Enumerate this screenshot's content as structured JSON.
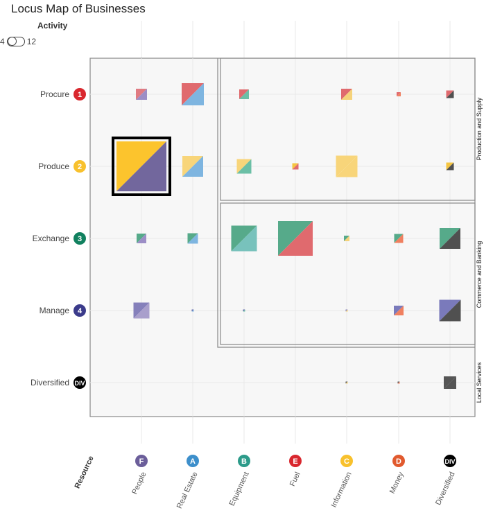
{
  "title": "Locus Map of Businesses",
  "activity_toggle": {
    "label": "Activity",
    "min_label": "4",
    "max_label": "12",
    "state": "off"
  },
  "colors": {
    "background_panel": "#f7f7f7",
    "grid": "#e8e8e8",
    "border": "#888888",
    "highlight_border": "#000000"
  },
  "chart_data": {
    "type": "locus-map",
    "title": "Locus Map of Businesses",
    "y_axis": {
      "rows": [
        {
          "label": "Procure",
          "badge": "1",
          "color": "#d9272e"
        },
        {
          "label": "Produce",
          "badge": "2",
          "color": "#f8c12d"
        },
        {
          "label": "Exchange",
          "badge": "3",
          "color": "#11815f"
        },
        {
          "label": "Manage",
          "badge": "4",
          "color": "#3b3b8b"
        },
        {
          "label": "Diversified",
          "badge": "DIV",
          "color": "#000000"
        }
      ]
    },
    "x_axis": {
      "title": "Resource",
      "columns": [
        {
          "label": "People",
          "badge": "F",
          "color": "#6b5e9a"
        },
        {
          "label": "Real Estate",
          "badge": "A",
          "color": "#3d8fcb"
        },
        {
          "label": "Equipment",
          "badge": "B",
          "color": "#2c9b8a"
        },
        {
          "label": "Fuel",
          "badge": "E",
          "color": "#d9272e"
        },
        {
          "label": "Information",
          "badge": "C",
          "color": "#f8c12d"
        },
        {
          "label": "Money",
          "badge": "D",
          "color": "#e15a2e"
        },
        {
          "label": "Diversified",
          "badge": "DIV",
          "color": "#000000"
        }
      ]
    },
    "groups": [
      {
        "label": "Production and Supply",
        "rows": [
          0,
          1
        ],
        "cols": [
          2,
          6
        ]
      },
      {
        "label": "Commerce and Banking",
        "rows": [
          2,
          3
        ],
        "cols": [
          2,
          6
        ]
      },
      {
        "label": "Local Services",
        "rows": [
          4,
          4
        ],
        "cols": [
          0,
          6
        ]
      }
    ],
    "cells": [
      {
        "row": 0,
        "col": 0,
        "size": 16,
        "c1": "#e07b82",
        "c2": "#9c8ec6"
      },
      {
        "row": 0,
        "col": 1,
        "size": 32,
        "c1": "#e06a6e",
        "c2": "#7eb5e0"
      },
      {
        "row": 0,
        "col": 2,
        "size": 14,
        "c1": "#e06a6e",
        "c2": "#6bbfa6"
      },
      {
        "row": 0,
        "col": 4,
        "size": 16,
        "c1": "#e06a6e",
        "c2": "#f5d27a"
      },
      {
        "row": 0,
        "col": 5,
        "size": 6,
        "c1": "#e06a6e",
        "c2": "#f08060"
      },
      {
        "row": 0,
        "col": 6,
        "size": 11,
        "c1": "#e06a6e",
        "c2": "#505050"
      },
      {
        "row": 1,
        "col": 0,
        "size": 72,
        "c1": "#fcc42d",
        "c2": "#72679d",
        "highlight": true
      },
      {
        "row": 1,
        "col": 1,
        "size": 30,
        "c1": "#f8d57a",
        "c2": "#7eb5e0"
      },
      {
        "row": 1,
        "col": 2,
        "size": 21,
        "c1": "#f8d57a",
        "c2": "#6bbfa6"
      },
      {
        "row": 1,
        "col": 3,
        "size": 9,
        "c1": "#f5c542",
        "c2": "#e06a6e"
      },
      {
        "row": 1,
        "col": 4,
        "size": 31,
        "c1": "#f8d57a",
        "c2": "#f8d57a"
      },
      {
        "row": 1,
        "col": 6,
        "size": 11,
        "c1": "#f5c542",
        "c2": "#505050"
      },
      {
        "row": 2,
        "col": 0,
        "size": 14,
        "c1": "#56aa8a",
        "c2": "#9c8ec6"
      },
      {
        "row": 2,
        "col": 1,
        "size": 15,
        "c1": "#56aa8a",
        "c2": "#7eb5e0"
      },
      {
        "row": 2,
        "col": 2,
        "size": 37,
        "c1": "#56aa8a",
        "c2": "#78c2bc"
      },
      {
        "row": 2,
        "col": 3,
        "size": 50,
        "c1": "#56aa8a",
        "c2": "#e06a6e"
      },
      {
        "row": 2,
        "col": 4,
        "size": 8,
        "c1": "#56aa8a",
        "c2": "#f5d27a"
      },
      {
        "row": 2,
        "col": 5,
        "size": 13,
        "c1": "#56aa8a",
        "c2": "#f08060"
      },
      {
        "row": 2,
        "col": 6,
        "size": 30,
        "c1": "#56aa8a",
        "c2": "#505050"
      },
      {
        "row": 3,
        "col": 0,
        "size": 23,
        "c1": "#8580bb",
        "c2": "#a99fcc"
      },
      {
        "row": 3,
        "col": 1,
        "size": 3,
        "c1": "#5c62a8",
        "c2": "#7eb5e0"
      },
      {
        "row": 3,
        "col": 2,
        "size": 3,
        "c1": "#5c62a8",
        "c2": "#6bbfa6"
      },
      {
        "row": 3,
        "col": 4,
        "size": 3,
        "c1": "#8580bb",
        "c2": "#f5d27a"
      },
      {
        "row": 3,
        "col": 5,
        "size": 14,
        "c1": "#7a7abb",
        "c2": "#f08060"
      },
      {
        "row": 3,
        "col": 6,
        "size": 31,
        "c1": "#7a7abb",
        "c2": "#505050"
      },
      {
        "row": 4,
        "col": 4,
        "size": 3,
        "c1": "#555555",
        "c2": "#f5d27a"
      },
      {
        "row": 4,
        "col": 5,
        "size": 3,
        "c1": "#555555",
        "c2": "#f08060"
      },
      {
        "row": 4,
        "col": 6,
        "size": 18,
        "c1": "#555555",
        "c2": "#555555"
      }
    ]
  }
}
